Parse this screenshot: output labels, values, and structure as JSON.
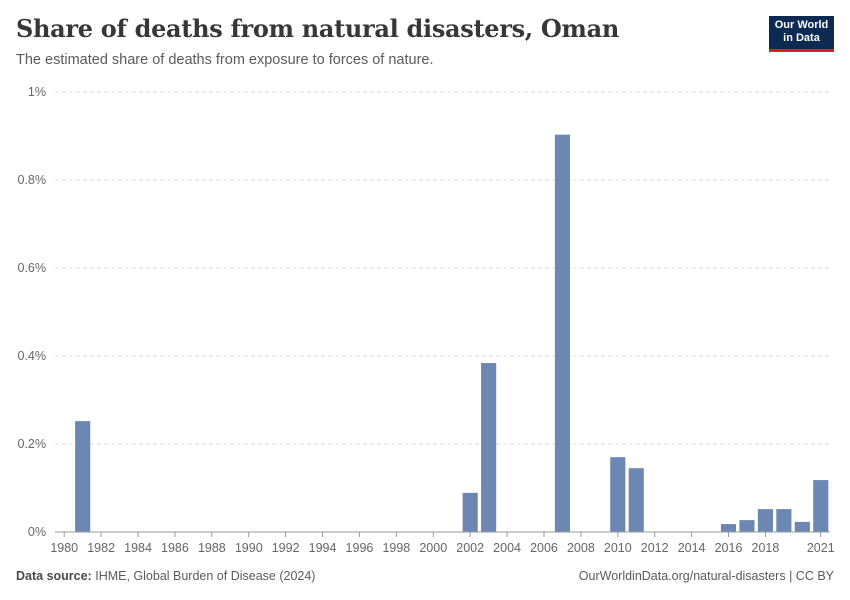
{
  "header": {
    "title": "Share of deaths from natural disasters, Oman",
    "subtitle": "The estimated share of deaths from exposure to forces of nature."
  },
  "logo": {
    "line1": "Our World",
    "line2": "in Data"
  },
  "footer": {
    "source_label": "Data source:",
    "source_text": "IHME, Global Burden of Disease (2024)",
    "url_text": "OurWorldinData.org/natural-disasters | CC BY"
  },
  "colors": {
    "bar": "#6d87b3",
    "grid": "#dddddd",
    "axis": "#999999",
    "text": "#666666"
  },
  "chart_data": {
    "type": "bar",
    "title": "Share of deaths from natural disasters, Oman",
    "xlabel": "",
    "ylabel": "",
    "unit": "%",
    "ylim": [
      0,
      1
    ],
    "yticks": [
      0,
      0.2,
      0.4,
      0.6,
      0.8,
      1
    ],
    "ytick_labels": [
      "0%",
      "0.2%",
      "0.4%",
      "0.6%",
      "0.8%",
      "1%"
    ],
    "xlim": [
      1980,
      2021
    ],
    "xtick_labels": [
      "1980",
      "1982",
      "1984",
      "1986",
      "1988",
      "1990",
      "1992",
      "1994",
      "1996",
      "1998",
      "2000",
      "2002",
      "2004",
      "2006",
      "2008",
      "2010",
      "2012",
      "2014",
      "2016",
      "2018",
      "2021"
    ],
    "categories": [
      1980,
      1981,
      1982,
      1983,
      1984,
      1985,
      1986,
      1987,
      1988,
      1989,
      1990,
      1991,
      1992,
      1993,
      1994,
      1995,
      1996,
      1997,
      1998,
      1999,
      2000,
      2001,
      2002,
      2003,
      2004,
      2005,
      2006,
      2007,
      2008,
      2009,
      2010,
      2011,
      2012,
      2013,
      2014,
      2015,
      2016,
      2017,
      2018,
      2019,
      2020,
      2021
    ],
    "values": [
      0,
      0.252,
      0,
      0,
      0,
      0,
      0,
      0,
      0,
      0,
      0,
      0,
      0,
      0,
      0,
      0,
      0,
      0,
      0,
      0,
      0,
      0,
      0.089,
      0.384,
      0,
      0,
      0,
      0.903,
      0,
      0,
      0.17,
      0.145,
      0,
      0,
      0,
      0,
      0.018,
      0.027,
      0.052,
      0.052,
      0.023,
      0.118
    ],
    "grid": true
  }
}
